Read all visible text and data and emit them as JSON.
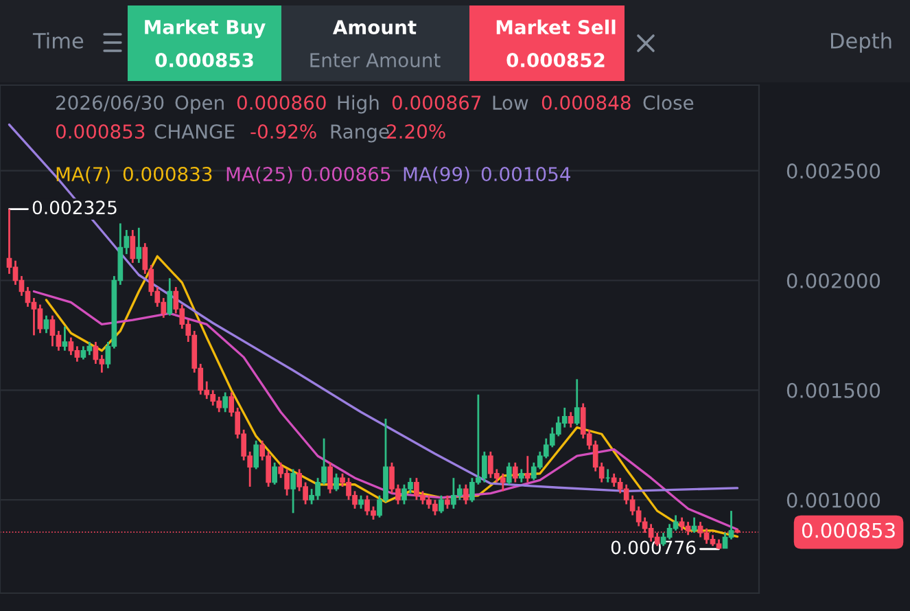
{
  "chart_data": {
    "type": "candlestick",
    "categories": [
      null,
      null,
      null,
      null,
      null,
      null,
      null,
      null,
      null,
      null,
      null,
      null,
      null,
      null,
      null,
      null,
      null,
      null,
      null,
      null,
      null,
      null,
      null,
      null,
      null,
      null,
      null,
      null,
      null,
      null,
      null,
      null,
      null,
      null,
      null,
      null,
      null,
      null,
      null,
      null,
      null,
      null,
      null,
      null,
      null,
      null,
      null,
      null,
      null,
      null,
      null,
      null,
      null,
      null,
      null,
      null,
      null,
      null,
      null,
      null,
      null,
      null,
      null,
      null,
      null,
      null,
      null,
      null,
      null,
      null,
      null,
      null,
      null,
      null,
      null,
      null,
      null,
      null,
      null,
      null,
      null,
      null,
      null,
      null,
      null,
      null,
      null,
      null,
      null,
      null,
      null,
      null,
      null,
      null,
      null,
      null,
      null,
      null,
      null,
      null,
      null,
      null,
      null,
      null,
      null,
      null,
      null,
      null,
      null,
      null,
      null,
      null,
      null,
      null,
      null,
      null,
      null,
      null,
      null
    ],
    "ohlc": [
      [
        0.0021,
        0.002325,
        0.00203,
        0.00206
      ],
      [
        0.00206,
        0.00209,
        0.00198,
        0.002
      ],
      [
        0.002,
        0.00202,
        0.00193,
        0.00195
      ],
      [
        0.00195,
        0.00197,
        0.00188,
        0.0019
      ],
      [
        0.0019,
        0.00192,
        0.00175,
        0.00187
      ],
      [
        0.00187,
        0.00189,
        0.00176,
        0.00178
      ],
      [
        0.00178,
        0.00184,
        0.00176,
        0.00182
      ],
      [
        0.00182,
        0.00184,
        0.0017,
        0.00175
      ],
      [
        0.00175,
        0.00177,
        0.00168,
        0.0017
      ],
      [
        0.0017,
        0.00179,
        0.00168,
        0.00172
      ],
      [
        0.00172,
        0.00174,
        0.00166,
        0.00168
      ],
      [
        0.00168,
        0.0017,
        0.00163,
        0.00165
      ],
      [
        0.00165,
        0.0017,
        0.00164,
        0.00168
      ],
      [
        0.00168,
        0.00172,
        0.00166,
        0.0017
      ],
      [
        0.0017,
        0.00172,
        0.00162,
        0.00164
      ],
      [
        0.00164,
        0.00166,
        0.00158,
        0.00162
      ],
      [
        0.00162,
        0.00172,
        0.0016,
        0.0017
      ],
      [
        0.0017,
        0.00202,
        0.00169,
        0.002
      ],
      [
        0.002,
        0.00226,
        0.00198,
        0.00215
      ],
      [
        0.00215,
        0.00223,
        0.00212,
        0.0022
      ],
      [
        0.0022,
        0.00223,
        0.00208,
        0.0021
      ],
      [
        0.0021,
        0.00224,
        0.00208,
        0.00215
      ],
      [
        0.00215,
        0.00217,
        0.00203,
        0.00205
      ],
      [
        0.00205,
        0.00207,
        0.00193,
        0.00195
      ],
      [
        0.00195,
        0.00197,
        0.00188,
        0.0019
      ],
      [
        0.0019,
        0.00192,
        0.00183,
        0.00185
      ],
      [
        0.00185,
        0.00201,
        0.00184,
        0.00195
      ],
      [
        0.00195,
        0.00197,
        0.00185,
        0.00187
      ],
      [
        0.00187,
        0.00189,
        0.00178,
        0.0018
      ],
      [
        0.0018,
        0.00182,
        0.00172,
        0.00175
      ],
      [
        0.00175,
        0.00177,
        0.00158,
        0.0016
      ],
      [
        0.0016,
        0.00162,
        0.00148,
        0.0015
      ],
      [
        0.0015,
        0.00154,
        0.00146,
        0.00148
      ],
      [
        0.00148,
        0.0015,
        0.00143,
        0.00145
      ],
      [
        0.00145,
        0.00147,
        0.0014,
        0.00142
      ],
      [
        0.00142,
        0.00149,
        0.0014,
        0.00147
      ],
      [
        0.00147,
        0.00149,
        0.00138,
        0.0014
      ],
      [
        0.0014,
        0.00142,
        0.00128,
        0.0013
      ],
      [
        0.0013,
        0.00132,
        0.00118,
        0.0012
      ],
      [
        0.0012,
        0.00122,
        0.00106,
        0.00115
      ],
      [
        0.00115,
        0.00127,
        0.00114,
        0.00125
      ],
      [
        0.00125,
        0.00127,
        0.00118,
        0.0012
      ],
      [
        0.0012,
        0.00122,
        0.00106,
        0.00108
      ],
      [
        0.00108,
        0.00117,
        0.00107,
        0.00115
      ],
      [
        0.00115,
        0.00117,
        0.0011,
        0.00112
      ],
      [
        0.00112,
        0.00114,
        0.00102,
        0.00105
      ],
      [
        0.00105,
        0.00114,
        0.00094,
        0.00112
      ],
      [
        0.00112,
        0.00114,
        0.00104,
        0.00106
      ],
      [
        0.00106,
        0.00108,
        0.00098,
        0.001
      ],
      [
        0.001,
        0.00105,
        0.00098,
        0.00102
      ],
      [
        0.00102,
        0.0011,
        0.001,
        0.00108
      ],
      [
        0.00108,
        0.00128,
        0.00107,
        0.00115
      ],
      [
        0.00115,
        0.00117,
        0.00103,
        0.00105
      ],
      [
        0.00105,
        0.00112,
        0.00104,
        0.0011
      ],
      [
        0.0011,
        0.00112,
        0.00106,
        0.00108
      ],
      [
        0.00108,
        0.0011,
        0.001,
        0.00102
      ],
      [
        0.00102,
        0.00104,
        0.00096,
        0.00098
      ],
      [
        0.00098,
        0.00102,
        0.00096,
        0.001
      ],
      [
        0.001,
        0.00102,
        0.00093,
        0.00095
      ],
      [
        0.00095,
        0.00097,
        0.00091,
        0.00093
      ],
      [
        0.00093,
        0.00102,
        0.00092,
        0.001
      ],
      [
        0.001,
        0.00137,
        0.00099,
        0.00115
      ],
      [
        0.00115,
        0.00117,
        0.00103,
        0.00105
      ],
      [
        0.00105,
        0.00107,
        0.00098,
        0.001
      ],
      [
        0.001,
        0.00107,
        0.00098,
        0.00105
      ],
      [
        0.00105,
        0.0011,
        0.00103,
        0.00108
      ],
      [
        0.00108,
        0.0011,
        0.001,
        0.00102
      ],
      [
        0.00102,
        0.00104,
        0.00098,
        0.001
      ],
      [
        0.001,
        0.00102,
        0.00096,
        0.00098
      ],
      [
        0.00098,
        0.001,
        0.00093,
        0.00095
      ],
      [
        0.00095,
        0.00102,
        0.00094,
        0.001
      ],
      [
        0.001,
        0.00102,
        0.00096,
        0.00098
      ],
      [
        0.00098,
        0.0011,
        0.00096,
        0.00102
      ],
      [
        0.00102,
        0.00107,
        0.001,
        0.00105
      ],
      [
        0.00105,
        0.00107,
        0.00098,
        0.001
      ],
      [
        0.001,
        0.0011,
        0.00099,
        0.00108
      ],
      [
        0.00108,
        0.00148,
        0.00107,
        0.0011
      ],
      [
        0.0011,
        0.00122,
        0.00108,
        0.0012
      ],
      [
        0.0012,
        0.00122,
        0.0011,
        0.00112
      ],
      [
        0.00112,
        0.00114,
        0.00108,
        0.0011
      ],
      [
        0.0011,
        0.00112,
        0.00104,
        0.00108
      ],
      [
        0.00108,
        0.00117,
        0.00107,
        0.00115
      ],
      [
        0.00115,
        0.00117,
        0.00108,
        0.0011
      ],
      [
        0.0011,
        0.00114,
        0.00108,
        0.00112
      ],
      [
        0.00112,
        0.0012,
        0.00108,
        0.0011
      ],
      [
        0.0011,
        0.00117,
        0.00109,
        0.00115
      ],
      [
        0.00115,
        0.00122,
        0.00114,
        0.0012
      ],
      [
        0.0012,
        0.00128,
        0.00119,
        0.00125
      ],
      [
        0.00125,
        0.00133,
        0.00124,
        0.0013
      ],
      [
        0.0013,
        0.00138,
        0.00129,
        0.00135
      ],
      [
        0.00135,
        0.00142,
        0.00133,
        0.00138
      ],
      [
        0.00138,
        0.0014,
        0.00133,
        0.00135
      ],
      [
        0.00135,
        0.00155,
        0.00134,
        0.00142
      ],
      [
        0.00142,
        0.00144,
        0.00128,
        0.0013
      ],
      [
        0.0013,
        0.00132,
        0.00123,
        0.00125
      ],
      [
        0.00125,
        0.00127,
        0.00113,
        0.00115
      ],
      [
        0.00115,
        0.00117,
        0.00108,
        0.0011
      ],
      [
        0.0011,
        0.00114,
        0.00108,
        0.0011
      ],
      [
        0.0011,
        0.00112,
        0.00106,
        0.00108
      ],
      [
        0.00108,
        0.0011,
        0.00103,
        0.00105
      ],
      [
        0.00105,
        0.00107,
        0.00098,
        0.001
      ],
      [
        0.001,
        0.00102,
        0.00093,
        0.00095
      ],
      [
        0.00095,
        0.00097,
        0.00088,
        0.0009
      ],
      [
        0.0009,
        0.00092,
        0.00085,
        0.00087
      ],
      [
        0.00087,
        0.00089,
        0.00081,
        0.00083
      ],
      [
        0.00083,
        0.00085,
        0.00079,
        0.0008
      ],
      [
        0.0008,
        0.00085,
        0.00079,
        0.00083
      ],
      [
        0.00083,
        0.00089,
        0.00082,
        0.00087
      ],
      [
        0.00087,
        0.00093,
        0.00086,
        0.0009
      ],
      [
        0.0009,
        0.00092,
        0.00086,
        0.00088
      ],
      [
        0.00088,
        0.0009,
        0.00084,
        0.00086
      ],
      [
        0.00086,
        0.00092,
        0.00085,
        0.00088
      ],
      [
        0.00088,
        0.0009,
        0.00083,
        0.00085
      ],
      [
        0.00085,
        0.00087,
        0.0008,
        0.00082
      ],
      [
        0.00082,
        0.00084,
        0.00079,
        0.0008
      ],
      [
        0.0008,
        0.00082,
        0.000776,
        0.00078
      ],
      [
        0.00078,
        0.00085,
        0.00078,
        0.00083
      ],
      [
        0.00083,
        0.00095,
        0.00082,
        0.00086
      ],
      [
        0.00086,
        0.000867,
        0.000848,
        0.000853
      ]
    ],
    "colors": [
      "#f6465d",
      "#f6465d",
      "#f6465d",
      "#f6465d",
      "#f6465d",
      "#f6465d",
      "#2ebd85",
      "#f6465d",
      "#f6465d",
      "#2ebd85",
      "#f6465d",
      "#f6465d",
      "#2ebd85",
      "#2ebd85",
      "#f6465d",
      "#f6465d",
      "#2ebd85",
      "#2ebd85",
      "#2ebd85",
      "#2ebd85",
      "#f6465d",
      "#2ebd85",
      "#f6465d",
      "#f6465d",
      "#f6465d",
      "#f6465d",
      "#2ebd85",
      "#f6465d",
      "#f6465d",
      "#f6465d",
      "#f6465d",
      "#f6465d",
      "#f6465d",
      "#f6465d",
      "#f6465d",
      "#2ebd85",
      "#f6465d",
      "#f6465d",
      "#f6465d",
      "#f6465d",
      "#2ebd85",
      "#f6465d",
      "#f6465d",
      "#2ebd85",
      "#f6465d",
      "#f6465d",
      "#2ebd85",
      "#f6465d",
      "#f6465d",
      "#2ebd85",
      "#2ebd85",
      "#2ebd85",
      "#f6465d",
      "#2ebd85",
      "#f6465d",
      "#f6465d",
      "#f6465d",
      "#2ebd85",
      "#f6465d",
      "#f6465d",
      "#2ebd85",
      "#2ebd85",
      "#f6465d",
      "#f6465d",
      "#2ebd85",
      "#2ebd85",
      "#f6465d",
      "#f6465d",
      "#f6465d",
      "#f6465d",
      "#2ebd85",
      "#f6465d",
      "#2ebd85",
      "#2ebd85",
      "#f6465d",
      "#2ebd85",
      "#2ebd85",
      "#2ebd85",
      "#f6465d",
      "#f6465d",
      "#f6465d",
      "#2ebd85",
      "#f6465d",
      "#2ebd85",
      "#f6465d",
      "#2ebd85",
      "#2ebd85",
      "#2ebd85",
      "#2ebd85",
      "#2ebd85",
      "#2ebd85",
      "#f6465d",
      "#2ebd85",
      "#f6465d",
      "#f6465d",
      "#f6465d",
      "#f6465d",
      "#2ebd85",
      "#f6465d",
      "#f6465d",
      "#f6465d",
      "#f6465d",
      "#f6465d",
      "#f6465d",
      "#f6465d",
      "#f6465d",
      "#2ebd85",
      "#2ebd85",
      "#2ebd85",
      "#f6465d",
      "#f6465d",
      "#2ebd85",
      "#f6465d",
      "#f6465d",
      "#f6465d",
      "#f6465d",
      "#2ebd85",
      "#2ebd85",
      "#f6465d"
    ],
    "series": [
      {
        "name": "MA(7)",
        "type": "line",
        "color": "#f0b90b",
        "values": [
          null,
          null,
          null,
          null,
          null,
          null,
          0.001911,
          null,
          null,
          null,
          0.00176,
          null,
          null,
          null,
          null,
          0.00168,
          null,
          null,
          0.00177,
          null,
          null,
          0.00195,
          null,
          null,
          0.00211,
          null,
          null,
          null,
          0.00199,
          null,
          null,
          null,
          0.00174,
          null,
          null,
          null,
          0.0015,
          null,
          null,
          null,
          0.00129,
          null,
          null,
          null,
          0.00116,
          null,
          null,
          null,
          null,
          null,
          0.00107,
          null,
          null,
          null,
          null,
          null,
          0.00107,
          null,
          null,
          null,
          null,
          0.00099,
          null,
          null,
          null,
          0.00104,
          null,
          null,
          null,
          null,
          0.00101,
          null,
          null,
          null,
          null,
          null,
          0.00102,
          null,
          null,
          null,
          0.00111,
          null,
          null,
          null,
          null,
          null,
          0.00112,
          null,
          null,
          null,
          null,
          null,
          0.00133,
          null,
          null,
          null,
          0.0013,
          null,
          null,
          null,
          0.00114,
          null,
          null,
          null,
          null,
          0.00095,
          null,
          null,
          null,
          null,
          0.00086,
          null,
          null,
          null,
          0.00086,
          null,
          null,
          null,
          0.000833
        ]
      },
      {
        "name": "MA(25)",
        "type": "line",
        "color": "#d34fbd",
        "values": [
          null,
          null,
          null,
          null,
          0.00195,
          null,
          null,
          null,
          null,
          null,
          0.0019,
          null,
          null,
          null,
          null,
          0.0018,
          null,
          null,
          null,
          null,
          0.00182,
          null,
          null,
          null,
          null,
          null,
          0.00185,
          null,
          null,
          null,
          null,
          null,
          0.0018,
          null,
          null,
          null,
          null,
          null,
          0.00165,
          null,
          null,
          null,
          null,
          null,
          0.0014,
          null,
          null,
          null,
          null,
          null,
          0.0012,
          null,
          null,
          null,
          null,
          null,
          0.0011,
          null,
          null,
          null,
          null,
          null,
          0.00103,
          null,
          null,
          null,
          null,
          null,
          null,
          null,
          0.00101,
          null,
          null,
          null,
          null,
          null,
          null,
          null,
          0.00103,
          null,
          null,
          null,
          null,
          null,
          null,
          null,
          0.00109,
          null,
          null,
          null,
          null,
          null,
          0.0012,
          null,
          null,
          null,
          null,
          null,
          0.00123,
          null,
          null,
          null,
          null,
          null,
          0.0011,
          null,
          null,
          null,
          null,
          null,
          0.00096,
          null,
          null,
          null,
          null,
          null,
          null,
          null,
          0.000865
        ]
      },
      {
        "name": "MA(99)",
        "type": "line",
        "color": "#9b7fe0",
        "values": [
          0.00271,
          null,
          null,
          null,
          null,
          null,
          null,
          null,
          0.00246,
          null,
          null,
          null,
          null,
          null,
          null,
          null,
          null,
          null,
          null,
          null,
          null,
          0.002025,
          null,
          null,
          null,
          null,
          null,
          null,
          null,
          null,
          null,
          null,
          null,
          0.001806,
          null,
          null,
          null,
          null,
          null,
          null,
          null,
          null,
          null,
          null,
          null,
          null,
          0.00159,
          null,
          null,
          null,
          null,
          null,
          null,
          null,
          null,
          null,
          null,
          0.0014,
          null,
          null,
          null,
          null,
          null,
          null,
          null,
          null,
          null,
          null,
          null,
          0.00121,
          null,
          null,
          null,
          null,
          null,
          null,
          null,
          null,
          0.001075,
          null,
          null,
          null,
          null,
          null,
          null,
          null,
          null,
          null,
          null,
          0.001056,
          null,
          null,
          null,
          null,
          null,
          null,
          null,
          null,
          null,
          null,
          0.00104,
          null,
          null,
          null,
          null,
          null,
          null,
          null,
          null,
          null,
          null,
          null,
          null,
          null,
          null,
          null,
          null,
          null,
          0.001054
        ]
      }
    ],
    "ylim": [
      0.000575,
      0.00289
    ],
    "yticks": [
      {
        "value": 0.001,
        "label": "0.001000"
      },
      {
        "value": 0.0015,
        "label": "0.001500"
      },
      {
        "value": 0.002,
        "label": "0.002000"
      },
      {
        "value": 0.0025,
        "label": "0.002500"
      }
    ],
    "grid": "y",
    "ref_lines": [
      {
        "axis": "y",
        "value": 0.000853,
        "label": "0.000853",
        "color": "#f6465d"
      }
    ],
    "annotations": [
      "Time",
      "Market Buy",
      "0.000853",
      "Amount",
      "Enter Amount",
      "Market Sell",
      "0.000852",
      "Depth",
      "2026/06/30",
      "Open",
      "0.000860",
      "High",
      "0.000867",
      "Low",
      "0.000848",
      "Close",
      "0.000853",
      "CHANGE",
      "-0.92%",
      "Range",
      "2.20%",
      "0.000833",
      "0.000865",
      "0.001054",
      {
        "text": "0.002325",
        "y": 0.002325
      },
      {
        "text": "0.000776",
        "y": 0.000776
      }
    ]
  }
}
